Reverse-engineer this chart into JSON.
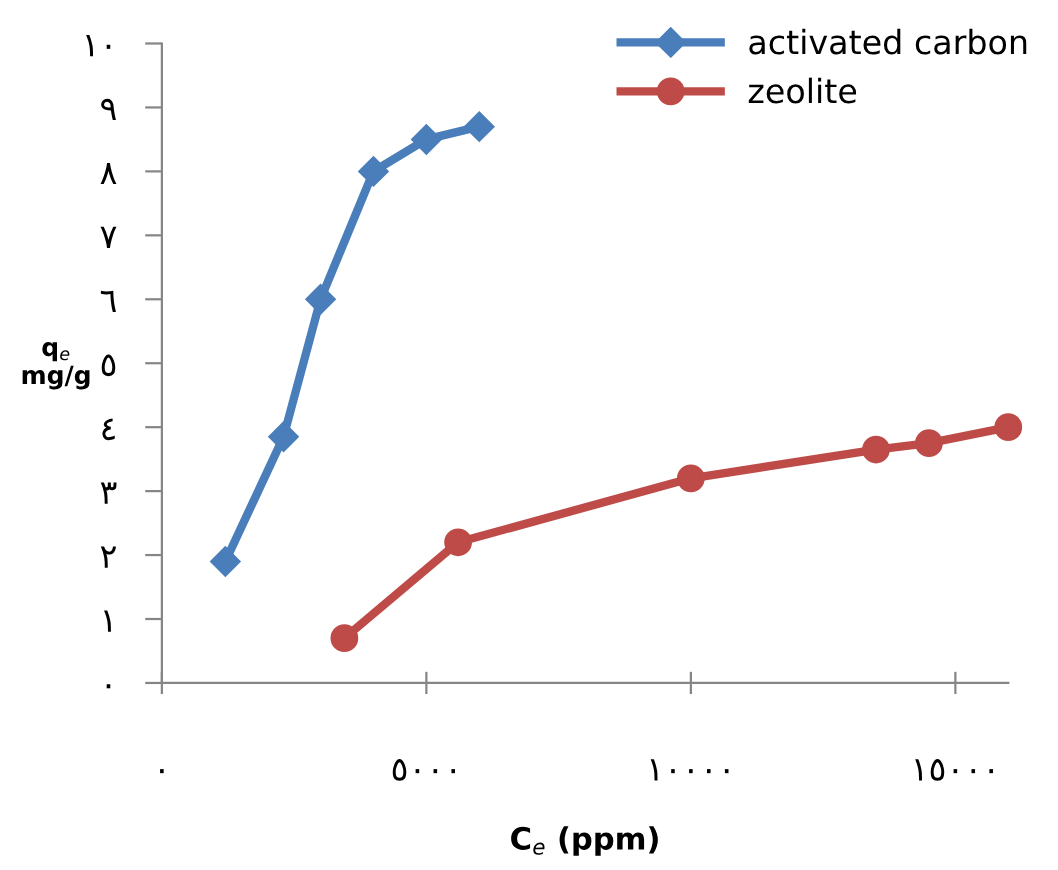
{
  "chart_data": {
    "type": "line",
    "xlabel": "C$_{e}$ (ppm)",
    "ylabel": "q$_{e}$\nmg/g",
    "xlim": [
      0,
      16000
    ],
    "ylim": [
      0,
      10
    ],
    "xticks": [
      {
        "value": 0,
        "label": "٠"
      },
      {
        "value": 5000,
        "label": "٥٠٠٠"
      },
      {
        "value": 10000,
        "label": "١٠٠٠٠"
      },
      {
        "value": 15000,
        "label": "١٥٠٠٠"
      }
    ],
    "yticks": [
      {
        "value": 0,
        "label": "٠"
      },
      {
        "value": 1,
        "label": "١"
      },
      {
        "value": 2,
        "label": "٢"
      },
      {
        "value": 3,
        "label": "٣"
      },
      {
        "value": 4,
        "label": "٤"
      },
      {
        "value": 5,
        "label": "٥"
      },
      {
        "value": 6,
        "label": "٦"
      },
      {
        "value": 7,
        "label": "٧"
      },
      {
        "value": 8,
        "label": "٨"
      },
      {
        "value": 9,
        "label": "٩"
      },
      {
        "value": 10,
        "label": "١٠"
      }
    ],
    "grid": false,
    "legend": "top right",
    "line_style": "solid",
    "series": [
      {
        "name": "activated carbon",
        "color": "#4a7ebb",
        "marker": "diamond",
        "x": [
          1200,
          2300,
          3000,
          4000,
          5000,
          6000
        ],
        "values": [
          1.9,
          3.85,
          6.0,
          8.0,
          8.5,
          8.7
        ]
      },
      {
        "name": "zeolite",
        "color": "#be4b48",
        "marker": "circle",
        "x": [
          3450,
          5600,
          10000,
          13500,
          14500,
          16000
        ],
        "values": [
          0.7,
          2.2,
          3.2,
          3.65,
          3.75,
          4.0
        ]
      }
    ]
  }
}
